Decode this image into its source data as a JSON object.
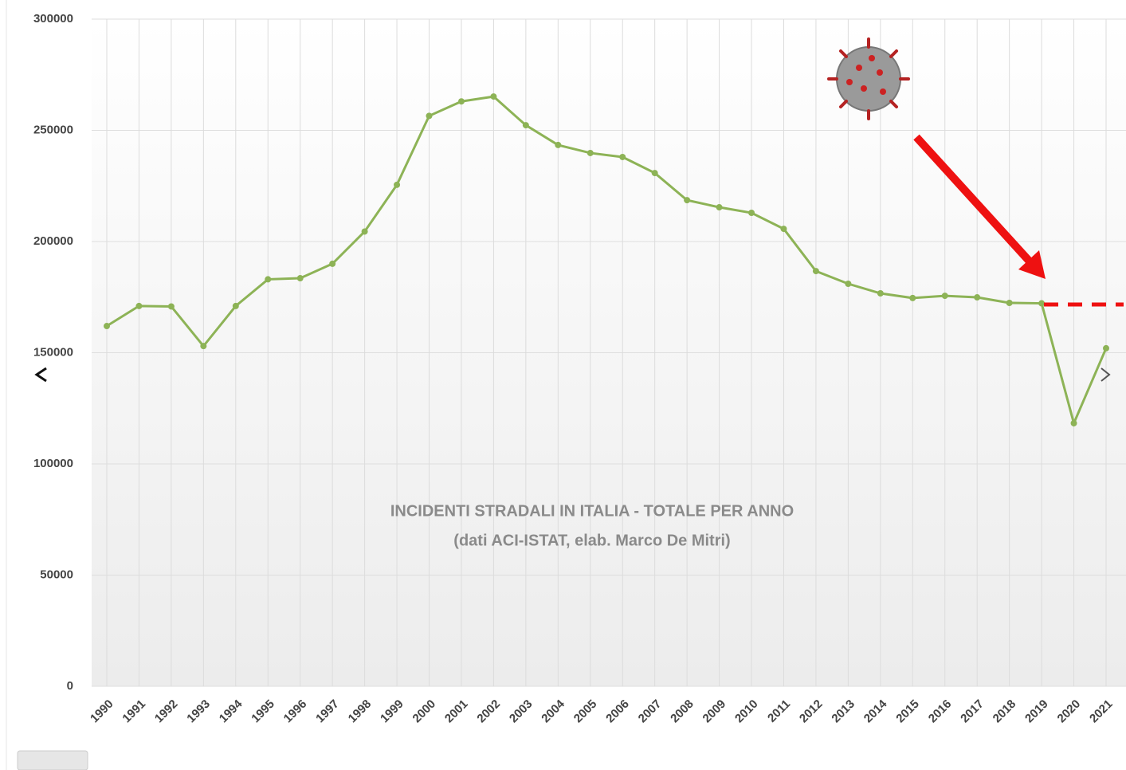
{
  "chart_data": {
    "type": "line",
    "categories": [
      "1990",
      "1991",
      "1992",
      "1993",
      "1994",
      "1995",
      "1996",
      "1997",
      "1998",
      "1999",
      "2000",
      "2001",
      "2002",
      "2003",
      "2004",
      "2005",
      "2006",
      "2007",
      "2008",
      "2009",
      "2010",
      "2011",
      "2012",
      "2013",
      "2014",
      "2015",
      "2016",
      "2017",
      "2018",
      "2019",
      "2020",
      "2021"
    ],
    "series": [
      {
        "color": "#8db356",
        "values": [
          162000,
          171000,
          170800,
          153000,
          171000,
          183000,
          183500,
          190000,
          204500,
          225500,
          256500,
          263000,
          265200,
          252300,
          243400,
          239800,
          238000,
          230800,
          218600,
          215400,
          212900,
          205700,
          186700,
          181000,
          176700,
          174600,
          175600,
          174900,
          172400,
          172200,
          118300,
          152000
        ]
      }
    ],
    "ylim": [
      0,
      300000
    ],
    "yticks": [
      0,
      50000,
      100000,
      150000,
      200000,
      250000,
      300000
    ],
    "grid": true,
    "annotations": [
      "INCIDENTI STRADALI IN ITALIA - TOTALE PER ANNO",
      "(dati ACI-ISTAT, elab. Marco De Mitri)"
    ]
  }
}
